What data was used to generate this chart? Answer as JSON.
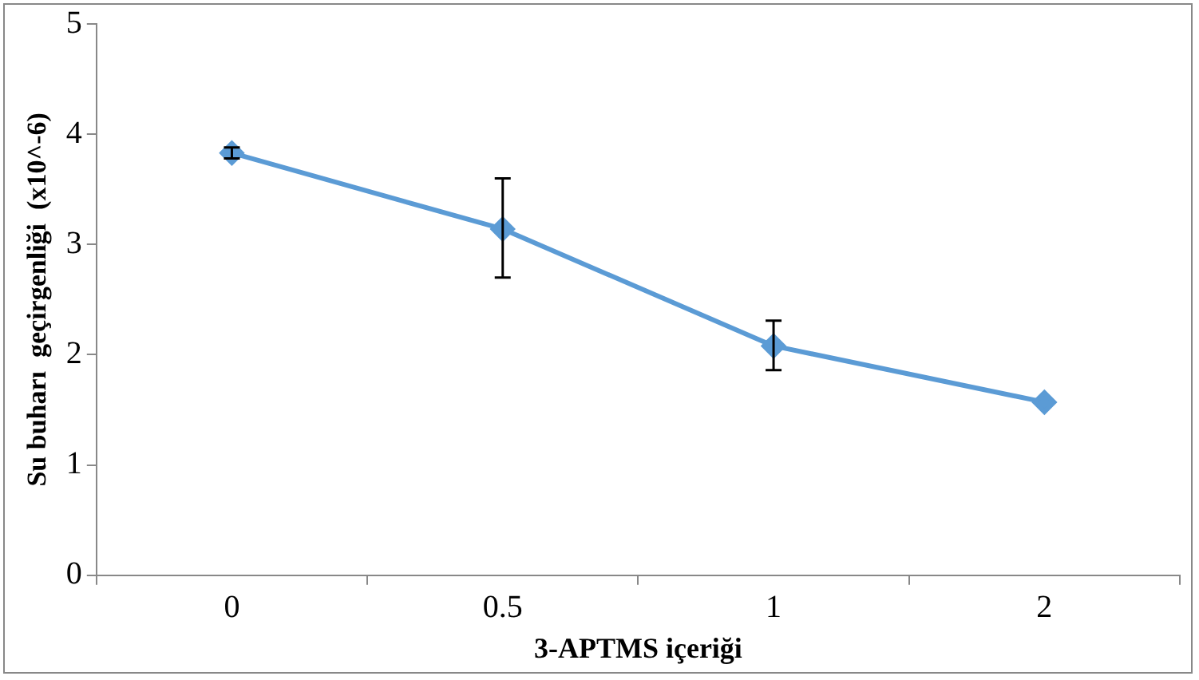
{
  "chart_data": {
    "type": "line",
    "xlabel": "3-APTMS içeriği",
    "ylabel": "Su buharı  geçirgenliği  (x10^-6)",
    "categories": [
      "0",
      "0.5",
      "1",
      "2"
    ],
    "series": [
      {
        "color": "#5b9bd5",
        "values": [
          3.83,
          3.14,
          2.08,
          1.57
        ],
        "errors": [
          [
            3.78,
            3.88
          ],
          [
            2.7,
            3.6
          ],
          [
            1.86,
            2.31
          ],
          null
        ]
      }
    ],
    "ylim": [
      0,
      5
    ],
    "yticks": [
      0,
      1,
      2,
      3,
      4,
      5
    ],
    "grid": false,
    "legend": false,
    "marker": "diamond",
    "line_style": "solid"
  }
}
